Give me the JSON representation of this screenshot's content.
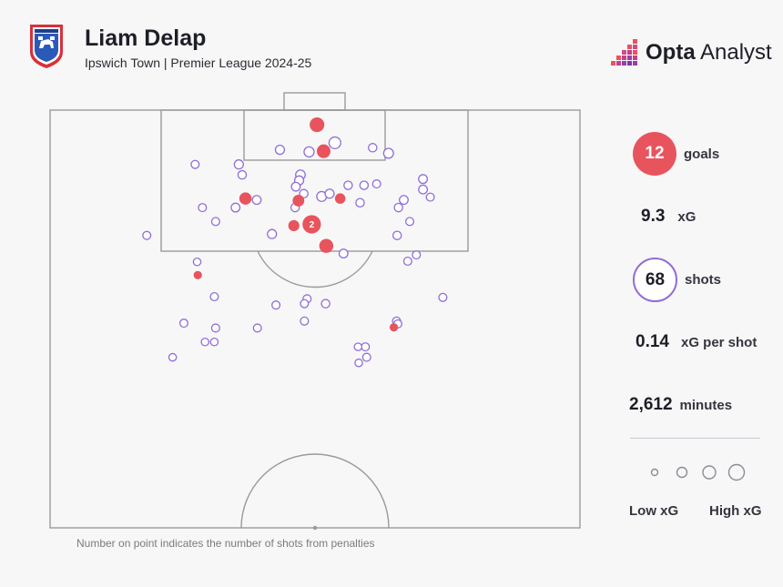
{
  "header": {
    "title": "Liam Delap",
    "subtitle": "Ipswich Town | Premier League 2024-25",
    "brand": {
      "strong": "Opta",
      "rest": " Analyst"
    }
  },
  "stats": {
    "goals_value": "12",
    "goals_label": "goals",
    "xg_value": "9.3",
    "xg_label": "xG",
    "shots_value": "68",
    "shots_label": "shots",
    "xg_per_shot_value": "0.14",
    "xg_per_shot_label": "xG per shot",
    "minutes_value": "2,612",
    "minutes_label": "minutes"
  },
  "legend": {
    "low": "Low xG",
    "high": "High xG"
  },
  "footnote": "Number on point indicates the number of shots from penalties",
  "colors": {
    "goal": "#e8545d",
    "miss": "#8f6dd8",
    "pitch_line": "#9a9a9a"
  },
  "chart_data": {
    "type": "scatter",
    "title": "Liam Delap",
    "subtitle": "Ipswich Town | Premier League 2024-25",
    "pitch": {
      "length_yards": 60,
      "width_yards": 80
    },
    "series": [
      {
        "name": "goals",
        "points": [
          {
            "x": 40.3,
            "y": 2.1,
            "xg": 0.4
          },
          {
            "x": 41.3,
            "y": 5.9,
            "xg": 0.32
          },
          {
            "x": 29.5,
            "y": 12.7,
            "xg": 0.22
          },
          {
            "x": 37.5,
            "y": 13.0,
            "xg": 0.18
          },
          {
            "x": 43.8,
            "y": 12.7,
            "xg": 0.12
          },
          {
            "x": 36.8,
            "y": 16.6,
            "xg": 0.15
          },
          {
            "x": 39.5,
            "y": 16.4,
            "xg": 0.79,
            "label": "2"
          },
          {
            "x": 41.7,
            "y": 19.5,
            "xg": 0.35
          },
          {
            "x": 22.3,
            "y": 23.7,
            "xg": 0.04
          },
          {
            "x": 51.9,
            "y": 31.2,
            "xg": 0.04
          }
        ]
      },
      {
        "name": "shots",
        "points": [
          {
            "x": 34.7,
            "y": 5.7,
            "xg": 0.06
          },
          {
            "x": 39.1,
            "y": 6.0,
            "xg": 0.1
          },
          {
            "x": 43.0,
            "y": 4.7,
            "xg": 0.18
          },
          {
            "x": 48.7,
            "y": 5.4,
            "xg": 0.04
          },
          {
            "x": 51.1,
            "y": 6.2,
            "xg": 0.09
          },
          {
            "x": 21.9,
            "y": 7.8,
            "xg": 0.03
          },
          {
            "x": 28.5,
            "y": 7.8,
            "xg": 0.06
          },
          {
            "x": 29.0,
            "y": 9.3,
            "xg": 0.04
          },
          {
            "x": 37.8,
            "y": 9.3,
            "xg": 0.08
          },
          {
            "x": 37.6,
            "y": 10.1,
            "xg": 0.06
          },
          {
            "x": 37.1,
            "y": 11.0,
            "xg": 0.05
          },
          {
            "x": 45.0,
            "y": 10.8,
            "xg": 0.04
          },
          {
            "x": 47.4,
            "y": 10.8,
            "xg": 0.04
          },
          {
            "x": 49.3,
            "y": 10.6,
            "xg": 0.03
          },
          {
            "x": 56.3,
            "y": 9.9,
            "xg": 0.05
          },
          {
            "x": 56.3,
            "y": 11.4,
            "xg": 0.05
          },
          {
            "x": 38.3,
            "y": 12.0,
            "xg": 0.04
          },
          {
            "x": 41.0,
            "y": 12.4,
            "xg": 0.09
          },
          {
            "x": 42.2,
            "y": 12.0,
            "xg": 0.06
          },
          {
            "x": 57.4,
            "y": 12.5,
            "xg": 0.03
          },
          {
            "x": 46.8,
            "y": 13.3,
            "xg": 0.04
          },
          {
            "x": 53.4,
            "y": 12.9,
            "xg": 0.05
          },
          {
            "x": 31.2,
            "y": 12.9,
            "xg": 0.05
          },
          {
            "x": 23.0,
            "y": 14.0,
            "xg": 0.03
          },
          {
            "x": 28.0,
            "y": 14.0,
            "xg": 0.05
          },
          {
            "x": 37.0,
            "y": 14.0,
            "xg": 0.04
          },
          {
            "x": 52.6,
            "y": 14.0,
            "xg": 0.04
          },
          {
            "x": 25.0,
            "y": 16.0,
            "xg": 0.03
          },
          {
            "x": 54.3,
            "y": 16.0,
            "xg": 0.03
          },
          {
            "x": 14.6,
            "y": 18.0,
            "xg": 0.03
          },
          {
            "x": 33.5,
            "y": 17.8,
            "xg": 0.06
          },
          {
            "x": 52.4,
            "y": 18.0,
            "xg": 0.04
          },
          {
            "x": 44.3,
            "y": 20.6,
            "xg": 0.05
          },
          {
            "x": 22.2,
            "y": 21.8,
            "xg": 0.02
          },
          {
            "x": 55.3,
            "y": 20.8,
            "xg": 0.03
          },
          {
            "x": 54.0,
            "y": 21.7,
            "xg": 0.03
          },
          {
            "x": 24.8,
            "y": 26.8,
            "xg": 0.03
          },
          {
            "x": 38.8,
            "y": 27.1,
            "xg": 0.03
          },
          {
            "x": 34.1,
            "y": 28.0,
            "xg": 0.03
          },
          {
            "x": 38.4,
            "y": 27.8,
            "xg": 0.03
          },
          {
            "x": 41.6,
            "y": 27.8,
            "xg": 0.04
          },
          {
            "x": 59.3,
            "y": 26.9,
            "xg": 0.03
          },
          {
            "x": 20.2,
            "y": 30.6,
            "xg": 0.03
          },
          {
            "x": 38.4,
            "y": 30.3,
            "xg": 0.03
          },
          {
            "x": 52.3,
            "y": 30.3,
            "xg": 0.03
          },
          {
            "x": 52.5,
            "y": 30.7,
            "xg": 0.03
          },
          {
            "x": 25.0,
            "y": 31.3,
            "xg": 0.03
          },
          {
            "x": 31.3,
            "y": 31.3,
            "xg": 0.03
          },
          {
            "x": 23.4,
            "y": 33.3,
            "xg": 0.02
          },
          {
            "x": 24.8,
            "y": 33.3,
            "xg": 0.02
          },
          {
            "x": 47.6,
            "y": 34.0,
            "xg": 0.03
          },
          {
            "x": 46.5,
            "y": 34.0,
            "xg": 0.02
          },
          {
            "x": 18.5,
            "y": 35.5,
            "xg": 0.02
          },
          {
            "x": 47.8,
            "y": 35.5,
            "xg": 0.03
          },
          {
            "x": 46.6,
            "y": 36.3,
            "xg": 0.02
          }
        ]
      }
    ],
    "size_encoding": "xg",
    "legend": [
      "Low xG",
      "High xG"
    ]
  }
}
